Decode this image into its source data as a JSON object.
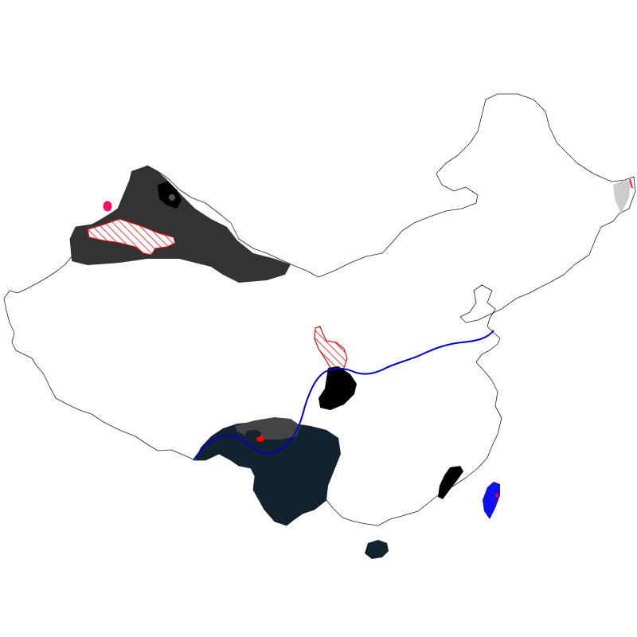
{
  "map": {
    "colors": {
      "background": "#ffffff",
      "outline": "#222222",
      "region_dark_grey": "#333333",
      "region_black": "#000000",
      "region_navy": "#13222f",
      "region_mid_grey": "#444444",
      "region_light_grey": "#cccccc",
      "hatch_red": "#e01010",
      "spot_pink": "#ff1060",
      "spot_red": "#ff0000",
      "island_blue": "#1010ee",
      "river_line": "#0000cc"
    },
    "layers": [
      {
        "name": "country-outline",
        "type": "outline"
      },
      {
        "name": "northwest-region",
        "type": "filled-dark-grey"
      },
      {
        "name": "northwest-hatched-band",
        "type": "hatched-red"
      },
      {
        "name": "northwest-pink-spot",
        "type": "pink-dot"
      },
      {
        "name": "northwest-black-patch",
        "type": "filled-black"
      },
      {
        "name": "central-hatched-area",
        "type": "hatched-red"
      },
      {
        "name": "central-black-area",
        "type": "filled-black"
      },
      {
        "name": "southwest-region",
        "type": "filled-navy"
      },
      {
        "name": "southwest-grey-patch",
        "type": "filled-mid-grey"
      },
      {
        "name": "southwest-red-spot",
        "type": "red-dot"
      },
      {
        "name": "southeast-black-patch",
        "type": "filled-black"
      },
      {
        "name": "southern-island",
        "type": "filled-navy"
      },
      {
        "name": "eastern-island",
        "type": "filled-blue"
      },
      {
        "name": "northeast-grey-tip",
        "type": "filled-light-grey"
      },
      {
        "name": "river-line",
        "type": "blue-line"
      }
    ]
  }
}
